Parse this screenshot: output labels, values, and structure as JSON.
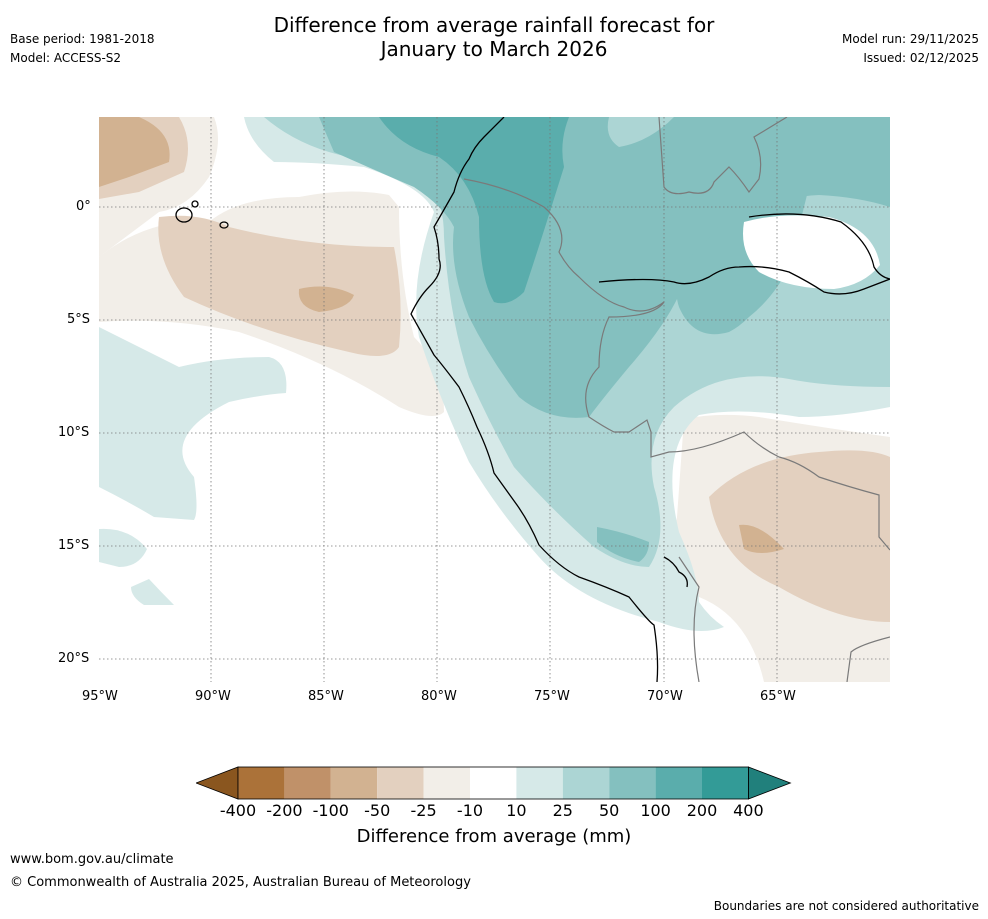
{
  "header": {
    "base_period": "Base period: 1981-2018",
    "model": "Model: ACCESS-S2",
    "title_line1": "Difference from average rainfall forecast for",
    "title_line2": "January to March 2026",
    "model_run": "Model run: 29/11/2025",
    "issued": "Issued: 02/12/2025"
  },
  "map": {
    "region": "Equatorial South America and eastern Pacific",
    "lon_range": [
      -95,
      -60
    ],
    "lat_range": [
      -21,
      4
    ],
    "lat_ticks": [
      {
        "value": 0,
        "label": "0°"
      },
      {
        "value": -5,
        "label": "5°S"
      },
      {
        "value": -10,
        "label": "10°S"
      },
      {
        "value": -15,
        "label": "15°S"
      },
      {
        "value": -20,
        "label": "20°S"
      }
    ],
    "lon_ticks": [
      {
        "value": -95,
        "label": "95°W"
      },
      {
        "value": -90,
        "label": "90°W"
      },
      {
        "value": -85,
        "label": "85°W"
      },
      {
        "value": -80,
        "label": "80°W"
      },
      {
        "value": -75,
        "label": "75°W"
      },
      {
        "value": -70,
        "label": "70°W"
      },
      {
        "value": -65,
        "label": "65°W"
      }
    ]
  },
  "colorbar": {
    "title": "Difference from average (mm)",
    "labels": [
      "-400",
      "-200",
      "-100",
      "-50",
      "-25",
      "-10",
      "10",
      "25",
      "50",
      "100",
      "200",
      "400"
    ],
    "colors": [
      "#8a561f",
      "#ab7239",
      "#c09169",
      "#d2b291",
      "#e3d0bf",
      "#f2eee8",
      "#ffffff",
      "#d6e9e8",
      "#acd5d4",
      "#84c0bf",
      "#5aadac",
      "#339b97",
      "#21807c"
    ]
  },
  "footer": {
    "website": "www.bom.gov.au/climate",
    "copyright": "© Commonwealth of Australia 2025, Australian Bureau of Meteorology",
    "disclaimer": "Boundaries are not considered authoritative"
  }
}
